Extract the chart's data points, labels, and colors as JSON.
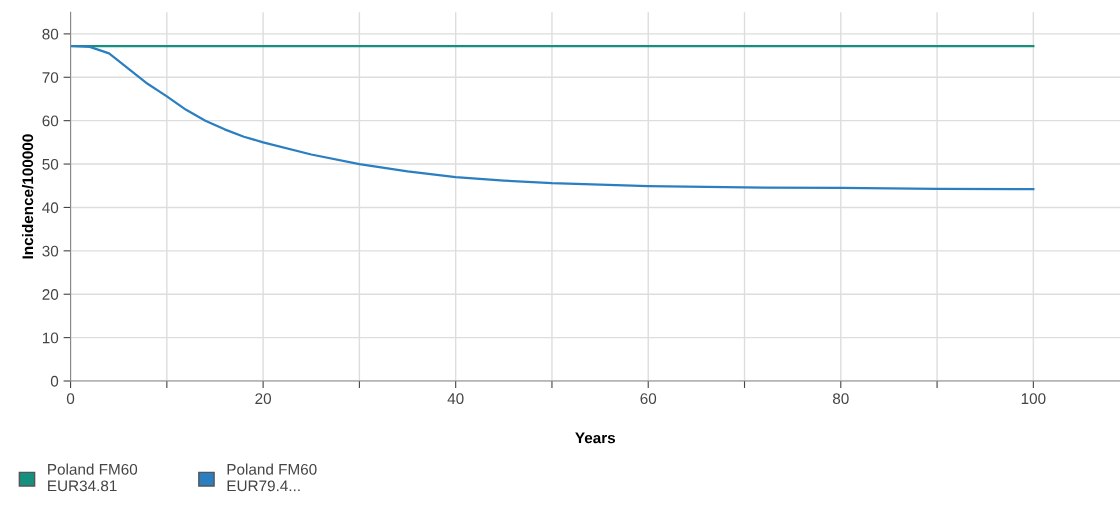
{
  "chart_data": {
    "type": "line",
    "xlabel": "Years",
    "ylabel": "Incidence/100000",
    "xlim": [
      0,
      109
    ],
    "ylim": [
      0,
      85
    ],
    "xticks": [
      0,
      {
        "value": 10,
        "label": null
      },
      20,
      {
        "value": 30,
        "label": null
      },
      40,
      {
        "value": 50,
        "label": null
      },
      60,
      {
        "value": 70,
        "label": null
      },
      80,
      {
        "value": 90,
        "label": null
      },
      100
    ],
    "yticks": [
      0,
      10,
      20,
      30,
      40,
      50,
      60,
      70,
      80
    ],
    "grid": true,
    "legend": "bottom",
    "marker": "none",
    "line_style": "solid",
    "series": [
      {
        "name": "Poland FM60\nEUR34.81",
        "color": "#15907f",
        "x": [
          0,
          100
        ],
        "values": [
          77.2,
          77.2
        ]
      },
      {
        "name": "Poland FM60\nEUR79.4...",
        "color": "#2b7fc1",
        "x": [
          0,
          2,
          4,
          6,
          8,
          10,
          12,
          14,
          16,
          18,
          20,
          25,
          30,
          35,
          40,
          45,
          50,
          60,
          70,
          80,
          90,
          100
        ],
        "values": [
          77.2,
          77,
          75.5,
          72,
          68.5,
          65.6,
          62.5,
          60,
          58,
          56.3,
          55,
          52.2,
          50,
          48.3,
          47,
          46.2,
          45.6,
          44.9,
          44.6,
          44.5,
          44.3,
          44.2
        ]
      }
    ]
  }
}
